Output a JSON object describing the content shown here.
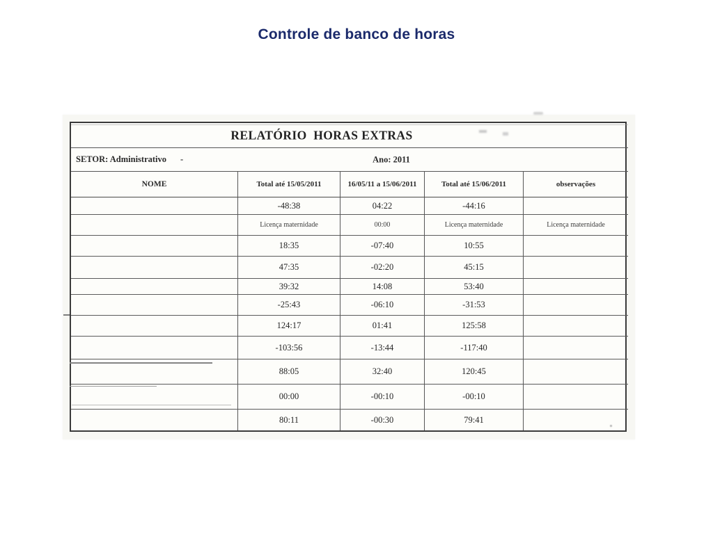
{
  "slide": {
    "title": "Controle de banco de horas",
    "title_color": "#1b2a6b"
  },
  "report": {
    "title": "RELATÓRIO  HORAS EXTRAS",
    "sector": "SETOR: Administrativo",
    "sector_suffix": "-",
    "year": "Ano: 2011",
    "columns": [
      "NOME",
      "Total até 15/05/2011",
      "16/05/11 a 15/06/2011",
      "Total até 15/06/2011",
      "observações"
    ],
    "rows": [
      [
        "",
        "-48:38",
        "04:22",
        "-44:16",
        ""
      ],
      [
        "",
        "Licença maternidade",
        "00:00",
        "Licença maternidade",
        "Licença maternidade"
      ],
      [
        "",
        "18:35",
        "-07:40",
        "10:55",
        ""
      ],
      [
        "",
        "47:35",
        "-02:20",
        "45:15",
        ""
      ],
      [
        "",
        "39:32",
        "14:08",
        "53:40",
        ""
      ],
      [
        "",
        "-25:43",
        "-06:10",
        "-31:53",
        ""
      ],
      [
        "",
        "124:17",
        "01:41",
        "125:58",
        ""
      ],
      [
        "",
        "-103:56",
        "-13:44",
        "-117:40",
        ""
      ],
      [
        "",
        "88:05",
        "32:40",
        "120:45",
        ""
      ],
      [
        "",
        "00:00",
        "-00:10",
        "-00:10",
        ""
      ],
      [
        "",
        "80:11",
        "-00:30",
        "79:41",
        ""
      ]
    ]
  }
}
